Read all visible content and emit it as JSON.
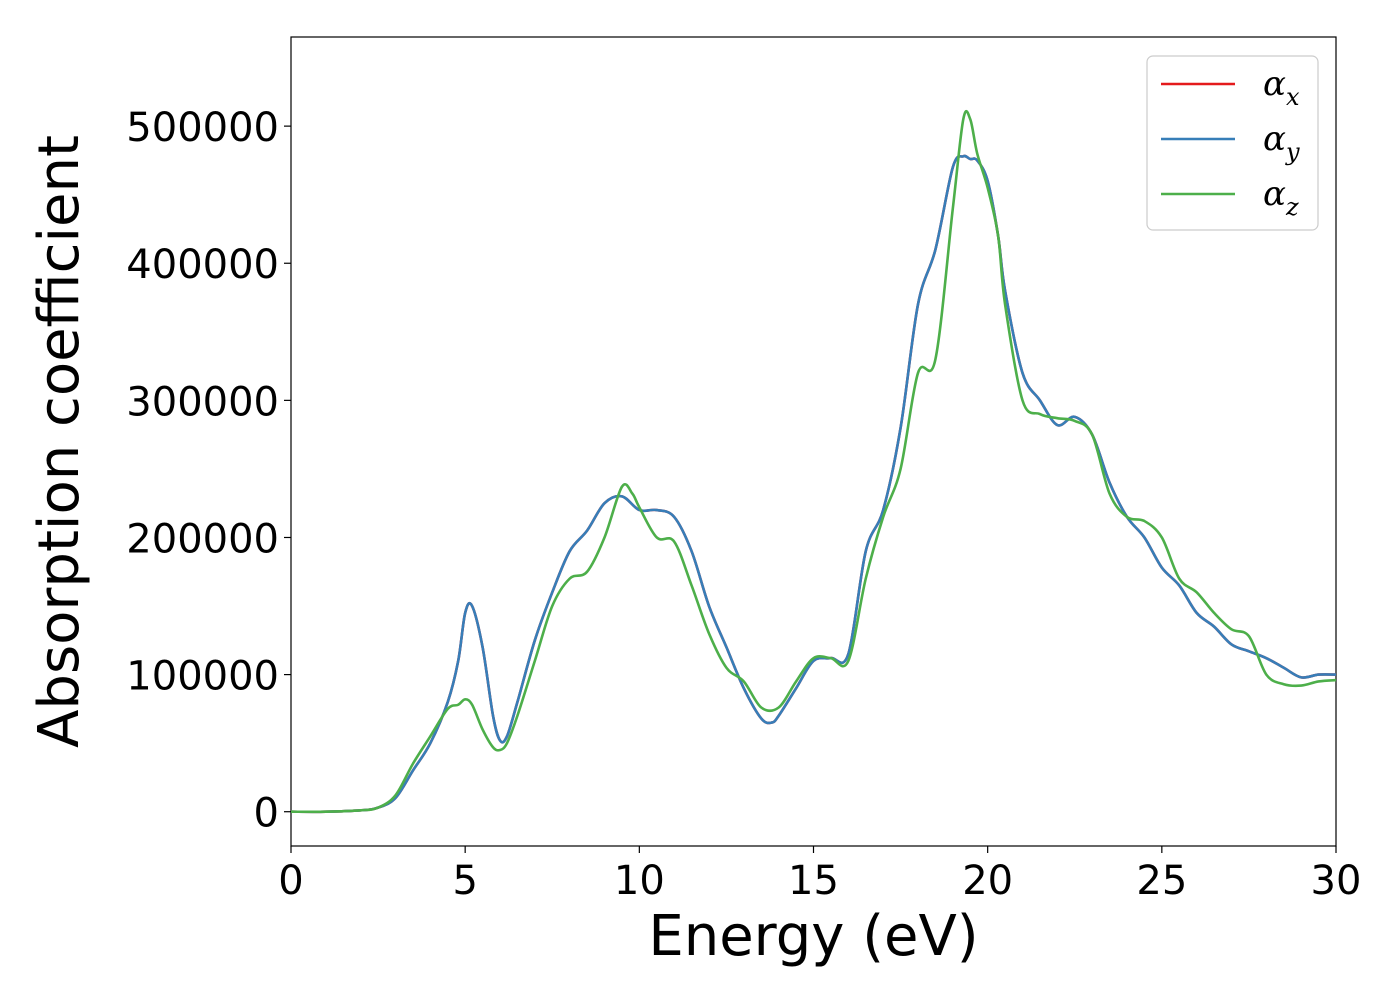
{
  "chart_data": {
    "type": "line",
    "xlabel": "Energy (eV)",
    "ylabel": "Absorption coefficient",
    "xlim": [
      0,
      30
    ],
    "ylim": [
      -25000,
      565000
    ],
    "xticks": [
      0,
      5,
      10,
      15,
      20,
      25,
      30
    ],
    "xtick_labels": [
      "0",
      "5",
      "10",
      "15",
      "20",
      "25",
      "30"
    ],
    "yticks": [
      0,
      100000,
      200000,
      300000,
      400000,
      500000
    ],
    "ytick_labels": [
      "0",
      "100000",
      "200000",
      "300000",
      "400000",
      "500000"
    ],
    "grid": false,
    "legend_position": "top-right",
    "series": [
      {
        "name": "α_x",
        "label_base": "α",
        "label_sub": "x",
        "color": "#e41a1c",
        "x": [
          0,
          1,
          2,
          2.5,
          3,
          3.5,
          4,
          4.5,
          4.8,
          5,
          5.2,
          5.5,
          5.8,
          6,
          6.2,
          6.5,
          7,
          7.5,
          8,
          8.5,
          9,
          9.5,
          10,
          10.5,
          11,
          11.5,
          12,
          12.5,
          13,
          13.5,
          13.8,
          14,
          14.5,
          15,
          15.5,
          16,
          16.5,
          17,
          17.5,
          18,
          18.5,
          19,
          19.3,
          19.5,
          19.7,
          20,
          20.3,
          20.5,
          21,
          21.5,
          22,
          22.5,
          23,
          23.5,
          24,
          24.5,
          25,
          25.5,
          26,
          26.5,
          27,
          27.5,
          28,
          28.5,
          29,
          29.5,
          30
        ],
        "y": [
          0,
          0,
          1000,
          3000,
          10000,
          30000,
          50000,
          80000,
          110000,
          145000,
          150000,
          120000,
          70000,
          52000,
          55000,
          80000,
          125000,
          160000,
          190000,
          205000,
          225000,
          230000,
          220000,
          220000,
          215000,
          190000,
          150000,
          120000,
          90000,
          68000,
          65000,
          70000,
          90000,
          110000,
          112000,
          115000,
          190000,
          220000,
          280000,
          370000,
          410000,
          470000,
          478000,
          476000,
          475000,
          460000,
          420000,
          380000,
          320000,
          300000,
          282000,
          288000,
          275000,
          240000,
          215000,
          200000,
          178000,
          165000,
          145000,
          135000,
          122000,
          117000,
          112000,
          105000,
          98000,
          100000,
          100000
        ]
      },
      {
        "name": "α_y",
        "label_base": "α",
        "label_sub": "y",
        "color": "#377eb8",
        "x": [
          0,
          1,
          2,
          2.5,
          3,
          3.5,
          4,
          4.5,
          4.8,
          5,
          5.2,
          5.5,
          5.8,
          6,
          6.2,
          6.5,
          7,
          7.5,
          8,
          8.5,
          9,
          9.5,
          10,
          10.5,
          11,
          11.5,
          12,
          12.5,
          13,
          13.5,
          13.8,
          14,
          14.5,
          15,
          15.5,
          16,
          16.5,
          17,
          17.5,
          18,
          18.5,
          19,
          19.3,
          19.5,
          19.7,
          20,
          20.3,
          20.5,
          21,
          21.5,
          22,
          22.5,
          23,
          23.5,
          24,
          24.5,
          25,
          25.5,
          26,
          26.5,
          27,
          27.5,
          28,
          28.5,
          29,
          29.5,
          30
        ],
        "y": [
          0,
          0,
          1000,
          3000,
          10000,
          30000,
          50000,
          80000,
          110000,
          145000,
          150000,
          120000,
          70000,
          52000,
          55000,
          80000,
          125000,
          160000,
          190000,
          205000,
          225000,
          230000,
          220000,
          220000,
          215000,
          190000,
          150000,
          120000,
          90000,
          68000,
          65000,
          70000,
          90000,
          110000,
          112000,
          115000,
          190000,
          220000,
          280000,
          370000,
          410000,
          470000,
          478000,
          476000,
          475000,
          460000,
          420000,
          380000,
          320000,
          300000,
          282000,
          288000,
          275000,
          240000,
          215000,
          200000,
          178000,
          165000,
          145000,
          135000,
          122000,
          117000,
          112000,
          105000,
          98000,
          100000,
          100000
        ]
      },
      {
        "name": "α_z",
        "label_base": "α",
        "label_sub": "z",
        "color": "#4daf4a",
        "x": [
          0,
          1,
          2,
          2.5,
          3,
          3.5,
          4,
          4.5,
          4.8,
          5,
          5.2,
          5.5,
          5.8,
          6,
          6.2,
          6.5,
          7,
          7.5,
          8,
          8.5,
          9,
          9.5,
          9.8,
          10,
          10.5,
          11,
          11.5,
          12,
          12.5,
          13,
          13.5,
          14,
          14.5,
          15,
          15.5,
          16,
          16.5,
          17,
          17.5,
          18,
          18.5,
          19,
          19.3,
          19.5,
          19.7,
          20,
          20.3,
          20.5,
          21,
          21.5,
          22,
          22.5,
          23,
          23.5,
          24,
          24.5,
          25,
          25.5,
          26,
          26.5,
          27,
          27.5,
          28,
          28.5,
          29,
          29.5,
          30
        ],
        "y": [
          0,
          0,
          1000,
          3000,
          12000,
          35000,
          55000,
          75000,
          78000,
          82000,
          78000,
          60000,
          47000,
          45000,
          50000,
          70000,
          110000,
          150000,
          170000,
          175000,
          200000,
          237000,
          232000,
          222000,
          200000,
          197000,
          165000,
          130000,
          105000,
          95000,
          76000,
          76000,
          95000,
          112000,
          112000,
          110000,
          170000,
          215000,
          250000,
          320000,
          330000,
          440000,
          505000,
          505000,
          480000,
          455000,
          420000,
          370000,
          300000,
          290000,
          287000,
          285000,
          275000,
          232000,
          215000,
          212000,
          200000,
          170000,
          160000,
          145000,
          133000,
          128000,
          100000,
          93000,
          92000,
          95000,
          96000
        ]
      }
    ]
  }
}
